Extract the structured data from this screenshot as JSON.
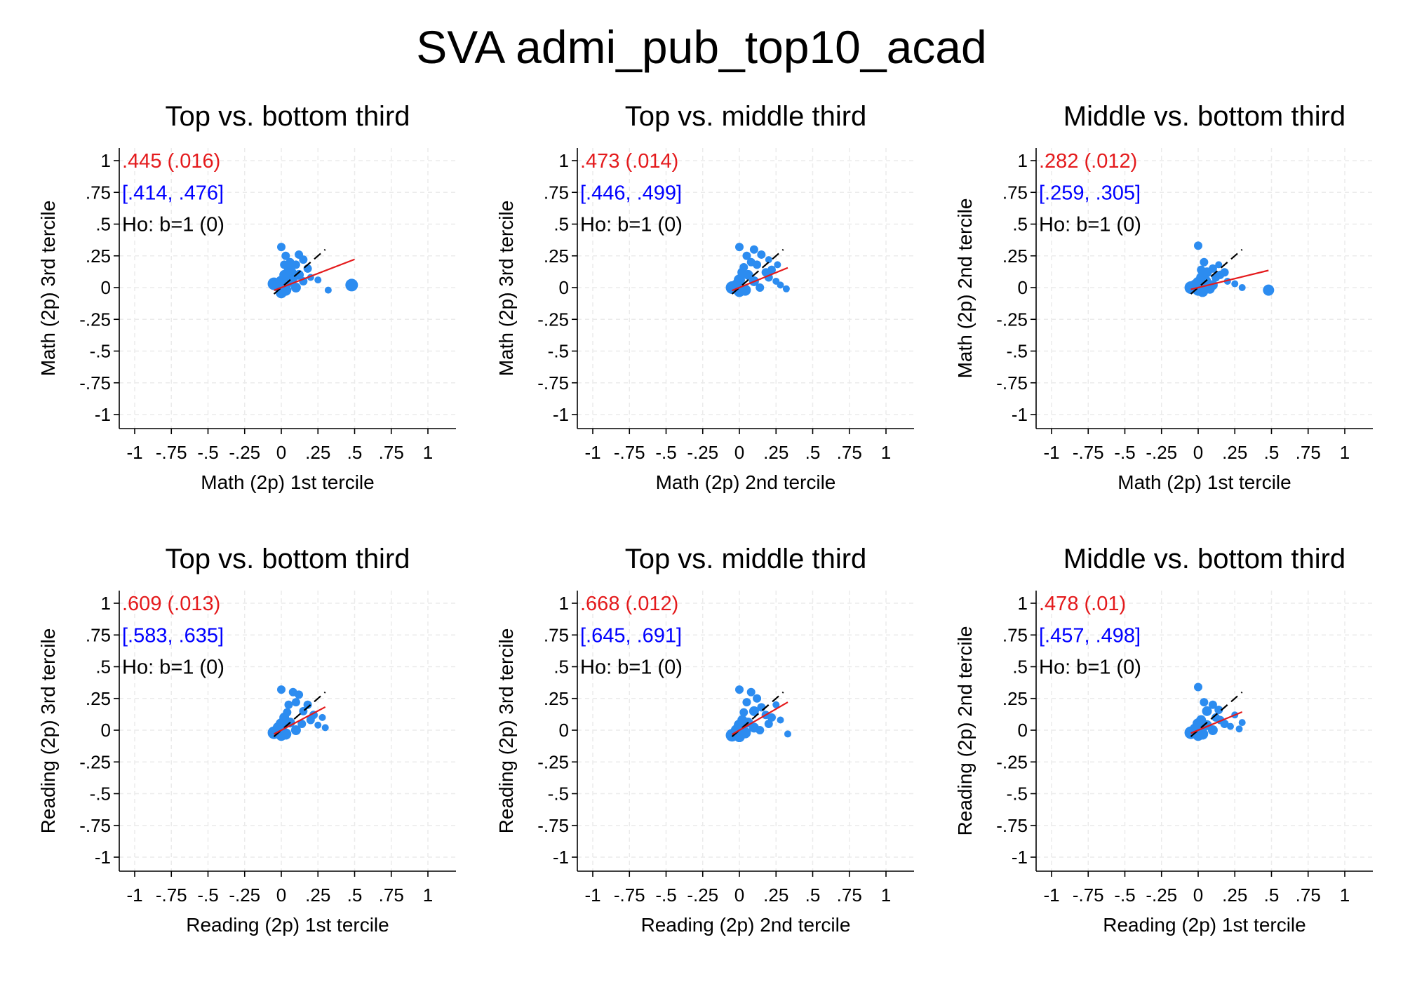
{
  "title": "SVA admi_pub_top10_acad",
  "colors": {
    "points": "#2C8CF0",
    "fit": "#E41A1C",
    "ci": "#0000FF",
    "reference": "#000000",
    "grid": "#EBEBEB"
  },
  "chart_data": [
    {
      "type": "scatter",
      "title": "Top vs. bottom third",
      "xlabel": "Math (2p) 1st tercile",
      "ylabel": "Math (2p) 3rd tercile",
      "xlim": [
        -1,
        1
      ],
      "ylim": [
        -1,
        1
      ],
      "xticks": [
        "-1",
        "-.75",
        "-.5",
        "-.25",
        "0",
        ".25",
        ".5",
        ".75",
        "1"
      ],
      "yticks": [
        "-1",
        "-.75",
        "-.5",
        "-.25",
        "0",
        ".25",
        ".5",
        ".75",
        "1"
      ],
      "grid": true,
      "annotations": {
        "estimate": ".445 (.016)",
        "ci": "[.414, .476]",
        "test": "Ho: b=1 (0)"
      },
      "fit_line": {
        "slope": 0.445,
        "x": [
          -0.05,
          0.5
        ]
      },
      "reference_line": {
        "slope": 1,
        "x": [
          -0.05,
          0.3
        ]
      },
      "points": [
        [
          -0.05,
          0.03
        ],
        [
          -0.02,
          0.01
        ],
        [
          0.0,
          0.05
        ],
        [
          0.02,
          0.1
        ],
        [
          0.03,
          -0.02
        ],
        [
          0.05,
          0.15
        ],
        [
          0.0,
          0.32
        ],
        [
          0.03,
          0.25
        ],
        [
          0.06,
          0.2
        ],
        [
          0.1,
          0.18
        ],
        [
          0.12,
          0.26
        ],
        [
          0.15,
          0.22
        ],
        [
          0.08,
          0.08
        ],
        [
          0.12,
          0.1
        ],
        [
          0.15,
          0.05
        ],
        [
          0.2,
          0.08
        ],
        [
          0.25,
          0.06
        ],
        [
          0.32,
          -0.02
        ],
        [
          0.48,
          0.02
        ],
        [
          0.0,
          -0.04
        ],
        [
          0.04,
          0.04
        ],
        [
          0.07,
          0.12
        ],
        [
          0.1,
          0.0
        ],
        [
          0.18,
          0.15
        ],
        [
          0.02,
          0.18
        ]
      ],
      "point_sizes": [
        9,
        8,
        8,
        7,
        8,
        7,
        6,
        6,
        6,
        6,
        6,
        6,
        7,
        7,
        6,
        5,
        5,
        5,
        9,
        8,
        8,
        7,
        7,
        6,
        6
      ]
    },
    {
      "type": "scatter",
      "title": "Top vs. middle third",
      "xlabel": "Math (2p) 2nd tercile",
      "ylabel": "Math (2p) 3rd tercile",
      "xlim": [
        -1,
        1
      ],
      "ylim": [
        -1,
        1
      ],
      "xticks": [
        "-1",
        "-.75",
        "-.5",
        "-.25",
        "0",
        ".25",
        ".5",
        ".75",
        "1"
      ],
      "yticks": [
        "-1",
        "-.75",
        "-.5",
        "-.25",
        "0",
        ".25",
        ".5",
        ".75",
        "1"
      ],
      "grid": true,
      "annotations": {
        "estimate": ".473 (.014)",
        "ci": "[.446, .499]",
        "test": "Ho: b=1 (0)"
      },
      "fit_line": {
        "slope": 0.473,
        "x": [
          -0.05,
          0.33
        ]
      },
      "reference_line": {
        "slope": 1,
        "x": [
          -0.05,
          0.3
        ]
      },
      "points": [
        [
          -0.05,
          0.0
        ],
        [
          -0.02,
          0.02
        ],
        [
          0.0,
          0.06
        ],
        [
          0.02,
          0.12
        ],
        [
          0.04,
          -0.02
        ],
        [
          0.0,
          0.32
        ],
        [
          0.05,
          0.25
        ],
        [
          0.08,
          0.2
        ],
        [
          0.1,
          0.3
        ],
        [
          0.12,
          0.18
        ],
        [
          0.15,
          0.26
        ],
        [
          0.18,
          0.12
        ],
        [
          0.2,
          0.08
        ],
        [
          0.22,
          0.14
        ],
        [
          0.25,
          0.05
        ],
        [
          0.28,
          0.02
        ],
        [
          0.32,
          -0.01
        ],
        [
          0.1,
          0.05
        ],
        [
          0.06,
          0.1
        ],
        [
          0.14,
          0.0
        ],
        [
          0.0,
          -0.03
        ],
        [
          0.2,
          0.22
        ],
        [
          0.26,
          0.18
        ],
        [
          0.03,
          0.16
        ]
      ],
      "point_sizes": [
        9,
        8,
        8,
        7,
        8,
        6,
        6,
        6,
        6,
        6,
        6,
        6,
        6,
        6,
        5,
        5,
        5,
        7,
        7,
        6,
        8,
        5,
        5,
        6
      ]
    },
    {
      "type": "scatter",
      "title": "Middle vs. bottom third",
      "xlabel": "Math (2p) 1st tercile",
      "ylabel": "Math (2p) 2nd tercile",
      "xlim": [
        -1,
        1
      ],
      "ylim": [
        -1,
        1
      ],
      "xticks": [
        "-1",
        "-.75",
        "-.5",
        "-.25",
        "0",
        ".25",
        ".5",
        ".75",
        "1"
      ],
      "yticks": [
        "-1",
        "-.75",
        "-.5",
        "-.25",
        "0",
        ".25",
        ".5",
        ".75",
        "1"
      ],
      "grid": true,
      "annotations": {
        "estimate": ".282 (.012)",
        "ci": "[.259, .305]",
        "test": "Ho: b=1 (0)"
      },
      "fit_line": {
        "slope": 0.282,
        "x": [
          -0.05,
          0.48
        ]
      },
      "reference_line": {
        "slope": 1,
        "x": [
          -0.05,
          0.3
        ]
      },
      "points": [
        [
          -0.05,
          0.0
        ],
        [
          -0.02,
          0.02
        ],
        [
          0.0,
          0.04
        ],
        [
          0.02,
          0.08
        ],
        [
          0.03,
          -0.03
        ],
        [
          0.0,
          0.33
        ],
        [
          0.04,
          0.2
        ],
        [
          0.06,
          0.12
        ],
        [
          0.1,
          0.15
        ],
        [
          0.12,
          0.08
        ],
        [
          0.15,
          0.1
        ],
        [
          0.2,
          0.05
        ],
        [
          0.25,
          0.03
        ],
        [
          0.3,
          0.0
        ],
        [
          0.05,
          0.05
        ],
        [
          0.08,
          -0.01
        ],
        [
          0.0,
          -0.02
        ],
        [
          0.48,
          -0.02
        ],
        [
          0.1,
          0.02
        ],
        [
          0.18,
          0.12
        ],
        [
          0.02,
          0.14
        ],
        [
          0.14,
          0.18
        ]
      ],
      "point_sizes": [
        9,
        8,
        8,
        7,
        8,
        6,
        6,
        7,
        6,
        6,
        6,
        5,
        5,
        5,
        8,
        7,
        8,
        8,
        7,
        6,
        6,
        5
      ]
    },
    {
      "type": "scatter",
      "title": "Top vs. bottom third",
      "xlabel": "Reading (2p) 1st tercile",
      "ylabel": "Reading (2p) 3rd tercile",
      "xlim": [
        -1,
        1
      ],
      "ylim": [
        -1,
        1
      ],
      "xticks": [
        "-1",
        "-.75",
        "-.5",
        "-.25",
        "0",
        ".25",
        ".5",
        ".75",
        "1"
      ],
      "yticks": [
        "-1",
        "-.75",
        "-.5",
        "-.25",
        "0",
        ".25",
        ".5",
        ".75",
        "1"
      ],
      "grid": true,
      "annotations": {
        "estimate": ".609 (.013)",
        "ci": "[.583, .635]",
        "test": "Ho: b=1 (0)"
      },
      "fit_line": {
        "slope": 0.609,
        "x": [
          -0.05,
          0.3
        ]
      },
      "reference_line": {
        "slope": 1,
        "x": [
          -0.05,
          0.3
        ]
      },
      "points": [
        [
          -0.05,
          -0.02
        ],
        [
          -0.02,
          0.02
        ],
        [
          0.0,
          0.05
        ],
        [
          0.02,
          0.1
        ],
        [
          0.03,
          -0.03
        ],
        [
          0.0,
          0.32
        ],
        [
          0.05,
          0.2
        ],
        [
          0.08,
          0.3
        ],
        [
          0.1,
          0.22
        ],
        [
          0.12,
          0.28
        ],
        [
          0.15,
          0.15
        ],
        [
          0.18,
          0.2
        ],
        [
          0.2,
          0.08
        ],
        [
          0.22,
          0.12
        ],
        [
          0.25,
          0.04
        ],
        [
          0.3,
          0.02
        ],
        [
          0.28,
          0.1
        ],
        [
          0.06,
          0.06
        ],
        [
          0.1,
          0.0
        ],
        [
          0.14,
          0.05
        ],
        [
          0.0,
          -0.04
        ],
        [
          0.04,
          0.14
        ]
      ],
      "point_sizes": [
        9,
        8,
        8,
        7,
        8,
        6,
        6,
        6,
        6,
        6,
        6,
        6,
        6,
        6,
        5,
        5,
        5,
        7,
        7,
        6,
        8,
        6
      ]
    },
    {
      "type": "scatter",
      "title": "Top vs. middle third",
      "xlabel": "Reading (2p) 2nd tercile",
      "ylabel": "Reading (2p) 3rd tercile",
      "xlim": [
        -1,
        1
      ],
      "ylim": [
        -1,
        1
      ],
      "xticks": [
        "-1",
        "-.75",
        "-.5",
        "-.25",
        "0",
        ".25",
        ".5",
        ".75",
        "1"
      ],
      "yticks": [
        "-1",
        "-.75",
        "-.5",
        "-.25",
        "0",
        ".25",
        ".5",
        ".75",
        "1"
      ],
      "grid": true,
      "annotations": {
        "estimate": ".668 (.012)",
        "ci": "[.645, .691]",
        "test": "Ho: b=1 (0)"
      },
      "fit_line": {
        "slope": 0.668,
        "x": [
          -0.05,
          0.33
        ]
      },
      "reference_line": {
        "slope": 1,
        "x": [
          -0.05,
          0.3
        ]
      },
      "points": [
        [
          -0.05,
          -0.04
        ],
        [
          -0.02,
          0.0
        ],
        [
          0.0,
          0.04
        ],
        [
          0.02,
          0.08
        ],
        [
          0.04,
          -0.02
        ],
        [
          0.0,
          0.32
        ],
        [
          0.05,
          0.22
        ],
        [
          0.08,
          0.3
        ],
        [
          0.12,
          0.25
        ],
        [
          0.1,
          0.15
        ],
        [
          0.15,
          0.18
        ],
        [
          0.18,
          0.12
        ],
        [
          0.2,
          0.05
        ],
        [
          0.22,
          0.1
        ],
        [
          0.25,
          0.2
        ],
        [
          0.28,
          0.08
        ],
        [
          0.33,
          -0.03
        ],
        [
          0.06,
          0.06
        ],
        [
          0.1,
          0.02
        ],
        [
          0.14,
          0.0
        ],
        [
          0.0,
          -0.05
        ],
        [
          0.03,
          0.14
        ]
      ],
      "point_sizes": [
        9,
        8,
        8,
        7,
        8,
        6,
        6,
        6,
        6,
        7,
        6,
        6,
        6,
        6,
        5,
        5,
        5,
        7,
        7,
        6,
        8,
        6
      ]
    },
    {
      "type": "scatter",
      "title": "Middle vs. bottom third",
      "xlabel": "Reading (2p) 1st tercile",
      "ylabel": "Reading (2p) 2nd tercile",
      "xlim": [
        -1,
        1
      ],
      "ylim": [
        -1,
        1
      ],
      "xticks": [
        "-1",
        "-.75",
        "-.5",
        "-.25",
        "0",
        ".25",
        ".5",
        ".75",
        "1"
      ],
      "yticks": [
        "-1",
        "-.75",
        "-.5",
        "-.25",
        "0",
        ".25",
        ".5",
        ".75",
        "1"
      ],
      "grid": true,
      "annotations": {
        "estimate": ".478 (.01)",
        "ci": "[.457, .498]",
        "test": "Ho: b=1 (0)"
      },
      "fit_line": {
        "slope": 0.478,
        "x": [
          -0.05,
          0.3
        ]
      },
      "reference_line": {
        "slope": 1,
        "x": [
          -0.05,
          0.3
        ]
      },
      "points": [
        [
          -0.05,
          -0.02
        ],
        [
          -0.02,
          0.01
        ],
        [
          0.0,
          0.05
        ],
        [
          0.02,
          0.08
        ],
        [
          0.03,
          -0.03
        ],
        [
          0.0,
          0.34
        ],
        [
          0.04,
          0.22
        ],
        [
          0.06,
          0.15
        ],
        [
          0.1,
          0.2
        ],
        [
          0.12,
          0.1
        ],
        [
          0.15,
          0.08
        ],
        [
          0.18,
          0.05
        ],
        [
          0.22,
          0.03
        ],
        [
          0.25,
          0.12
        ],
        [
          0.28,
          0.01
        ],
        [
          0.3,
          0.06
        ],
        [
          0.06,
          0.04
        ],
        [
          0.1,
          0.0
        ],
        [
          0.0,
          -0.04
        ],
        [
          0.14,
          0.16
        ]
      ],
      "point_sizes": [
        9,
        8,
        8,
        7,
        8,
        6,
        6,
        7,
        6,
        6,
        6,
        6,
        5,
        5,
        5,
        5,
        7,
        7,
        8,
        6
      ]
    }
  ]
}
